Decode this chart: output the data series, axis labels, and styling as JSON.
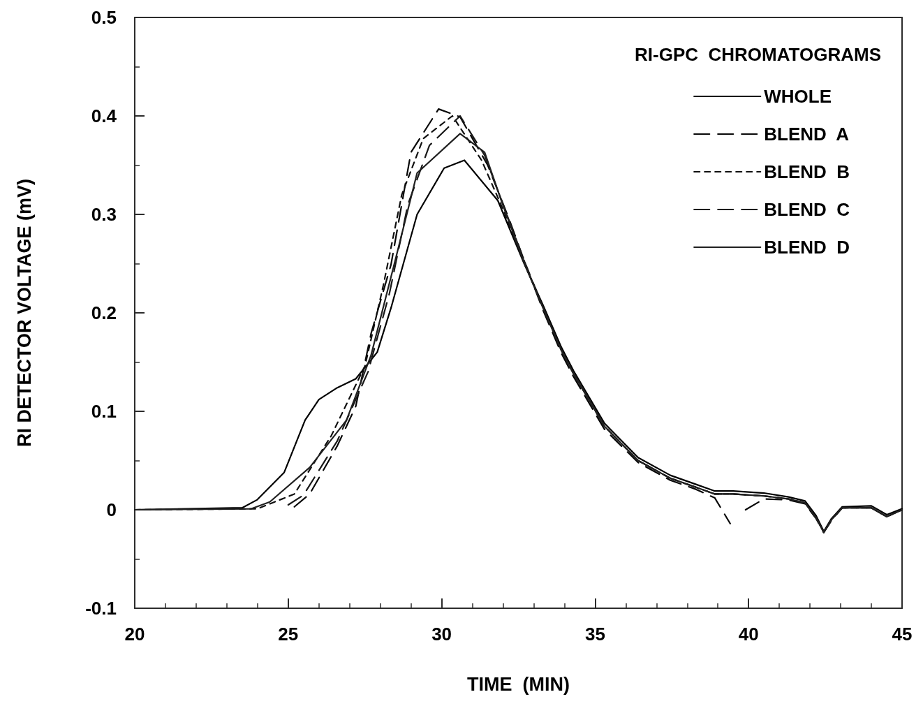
{
  "chart_data": {
    "type": "line",
    "xlabel": "TIME  (MIN)",
    "ylabel": "RI DETECTOR VOLTAGE (mV)",
    "annotations": [
      "RI-GPC  CHROMATOGRAMS"
    ],
    "xlim": [
      20,
      45
    ],
    "xticks": [
      20,
      25,
      30,
      35,
      40,
      45
    ],
    "ylim": [
      -0.1,
      0.5
    ],
    "yticks": [
      -0.1,
      0,
      0.1,
      0.2,
      0.3,
      0.4,
      0.5
    ],
    "grid": false,
    "legend": "top right",
    "marker": "none",
    "series": [
      {
        "name": "WHOLE",
        "color": "#000000",
        "line_style": "solid",
        "x": [
          20,
          23.5,
          23.98,
          24.87,
          25.55,
          26.0,
          26.6,
          27.2,
          27.9,
          28.35,
          29.2,
          30.08,
          30.74,
          31.83,
          32.7,
          33.3,
          33.9,
          34.3,
          35.3,
          36.4,
          37.45,
          38.27,
          38.9,
          39.5,
          40.5,
          41.3,
          41.84,
          42.2,
          42.45,
          42.7,
          43.05,
          44.0,
          44.5,
          45
        ],
        "values": [
          0,
          0.002,
          0.01,
          0.038,
          0.091,
          0.112,
          0.124,
          0.133,
          0.16,
          0.205,
          0.3,
          0.347,
          0.355,
          0.314,
          0.249,
          0.208,
          0.165,
          0.141,
          0.088,
          0.053,
          0.035,
          0.026,
          0.019,
          0.019,
          0.017,
          0.013,
          0.009,
          -0.006,
          -0.022,
          -0.009,
          0.003,
          0.004,
          -0.005,
          0.001
        ]
      },
      {
        "name": "BLEND  A",
        "color": "#080808",
        "line_style": "dashed",
        "x": [
          25.2,
          25.7,
          26.6,
          27.2,
          27.7,
          28.35,
          29.0,
          29.9,
          30.6,
          31.5,
          32.2,
          32.7,
          33.3,
          33.9,
          34.3,
          35.3,
          36.4,
          37.45,
          38.27,
          38.9,
          39.4,
          39.6,
          39.9,
          40.5,
          41.3,
          41.84,
          42.2,
          42.45,
          42.7,
          43.05,
          44.0,
          44.5,
          45
        ],
        "values": [
          0.003,
          0.016,
          0.065,
          0.105,
          0.179,
          0.249,
          0.363,
          0.407,
          0.399,
          0.35,
          0.295,
          0.252,
          0.203,
          0.159,
          0.135,
          0.082,
          0.048,
          0.03,
          0.021,
          0.012,
          -0.014,
          null,
          0.0,
          0.011,
          0.01,
          0.006,
          -0.009,
          -0.023,
          -0.011,
          0.002,
          0.002,
          -0.007,
          0.0
        ]
      },
      {
        "name": "BLEND  B",
        "color": "#101010",
        "line_style": "dotted",
        "x": [
          20,
          24.0,
          25.2,
          26.4,
          27.5,
          28.1,
          28.7,
          29.4,
          30.35,
          31.3,
          32.0,
          32.7,
          33.3,
          33.9,
          34.3,
          35.3,
          36.4,
          37.45,
          38.27,
          38.9,
          39.5,
          40.5,
          41.3,
          41.84,
          42.2,
          42.45,
          42.7,
          43.05,
          44.0,
          44.5,
          45
        ],
        "values": [
          0,
          0.001,
          0.016,
          0.075,
          0.146,
          0.228,
          0.32,
          0.377,
          0.4,
          0.355,
          0.305,
          0.25,
          0.206,
          0.162,
          0.138,
          0.085,
          0.05,
          0.032,
          0.023,
          0.016,
          0.016,
          0.014,
          0.011,
          0.007,
          -0.008,
          -0.023,
          -0.01,
          0.002,
          0.002,
          -0.007,
          0.0
        ]
      },
      {
        "name": "BLEND  C",
        "color": "#181818",
        "line_style": "dashed",
        "x": [
          25.0,
          25.5,
          26.6,
          27.6,
          28.3,
          28.9,
          29.6,
          30.6,
          31.4,
          32.0,
          32.7,
          33.3,
          33.9,
          34.3,
          35.3,
          36.4,
          37.45,
          38.27,
          38.9,
          39.5,
          40.5,
          41.3,
          41.84,
          42.2,
          42.45,
          42.7,
          43.05,
          44.0,
          44.5,
          45
        ],
        "values": [
          0.005,
          0.015,
          0.07,
          0.14,
          0.22,
          0.31,
          0.37,
          0.4,
          0.36,
          0.31,
          0.252,
          0.206,
          0.162,
          0.138,
          0.085,
          0.05,
          0.032,
          0.023,
          0.016,
          0.016,
          0.014,
          0.011,
          0.007,
          -0.008,
          -0.023,
          -0.01,
          0.002,
          0.002,
          -0.007,
          0.0
        ]
      },
      {
        "name": "BLEND  D",
        "color": "#202020",
        "line_style": "solid",
        "x": [
          20,
          23.8,
          24.4,
          25.7,
          26.9,
          27.7,
          28.5,
          29.2,
          30.6,
          31.4,
          32.0,
          32.7,
          33.3,
          33.9,
          34.3,
          35.3,
          36.4,
          37.45,
          38.27,
          38.9,
          39.5,
          40.5,
          41.3,
          41.84,
          42.2,
          42.45,
          42.7,
          43.05,
          44.0,
          44.5,
          45
        ],
        "values": [
          0,
          0.001,
          0.008,
          0.043,
          0.091,
          0.157,
          0.255,
          0.342,
          0.382,
          0.363,
          0.309,
          0.25,
          0.205,
          0.162,
          0.138,
          0.085,
          0.05,
          0.032,
          0.023,
          0.016,
          0.016,
          0.014,
          0.011,
          0.007,
          -0.008,
          -0.023,
          -0.01,
          0.002,
          0.002,
          -0.007,
          0.0
        ]
      }
    ]
  }
}
